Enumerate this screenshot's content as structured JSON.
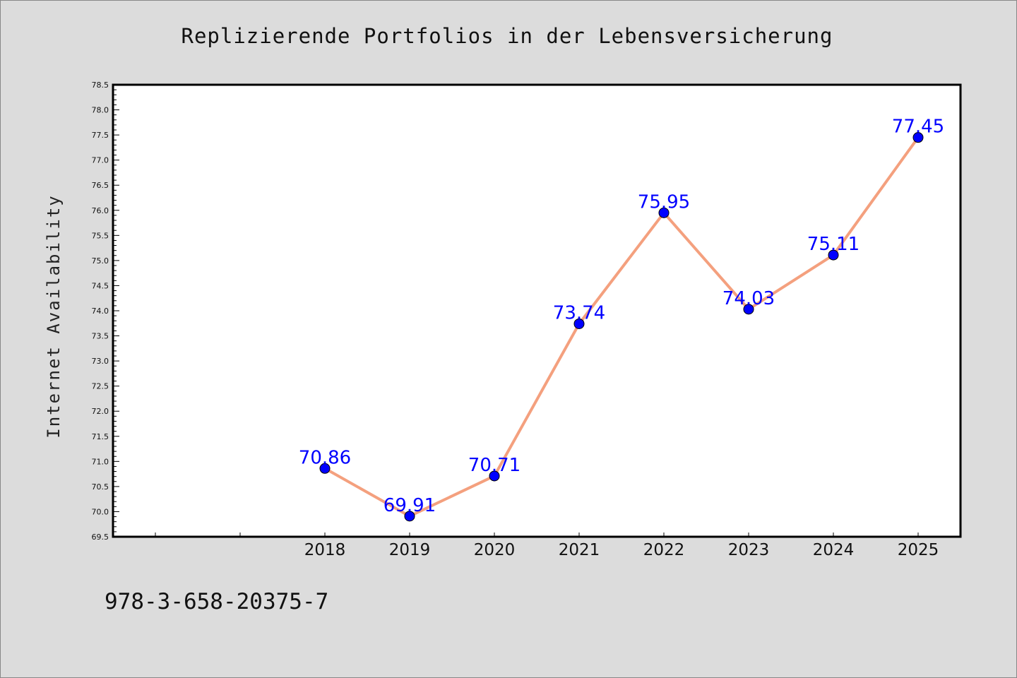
{
  "chart_data": {
    "type": "line",
    "title": "Replizierende Portfolios in der Lebensversicherung",
    "xlabel": "",
    "ylabel": "Internet Availability",
    "x": [
      "2018",
      "2019",
      "2020",
      "2021",
      "2022",
      "2023",
      "2024",
      "2025"
    ],
    "series": [
      {
        "values": [
          70.86,
          69.91,
          70.71,
          73.74,
          75.95,
          74.03,
          75.11,
          77.45
        ],
        "labels": [
          "70.86",
          "69.91",
          "70.71",
          "73.74",
          "75.95",
          "74.03",
          "75.11",
          "77.45"
        ],
        "line_color": "#f4a07e",
        "marker_color": "#0000ff"
      }
    ],
    "ylim": [
      69.5,
      78.5
    ],
    "y_ticks": [
      "69.5",
      "70.0",
      "70.5",
      "71.0",
      "71.5",
      "72.0",
      "72.5",
      "73.0",
      "73.5",
      "74.0",
      "74.5",
      "75.0",
      "75.5",
      "76.0",
      "76.5",
      "77.0",
      "77.5",
      "78.0",
      "78.5"
    ],
    "grid": false
  },
  "footer_text": "978-3-658-20375-7"
}
